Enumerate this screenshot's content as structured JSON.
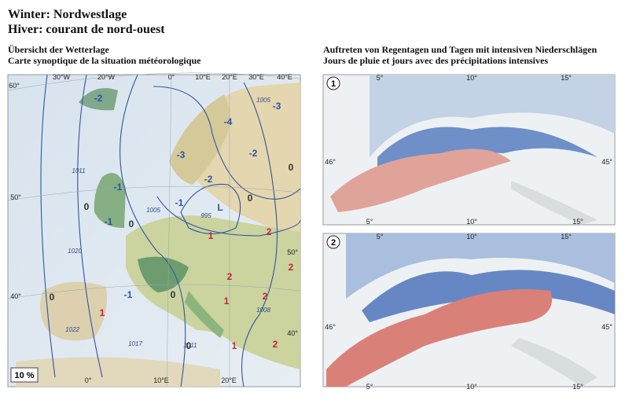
{
  "header": {
    "title_de": "Winter: Nordwestlage",
    "title_fr": "Hiver: courant de nord-ouest"
  },
  "synoptic_map": {
    "subtitle_de": "Übersicht der Wetterlage",
    "subtitle_fr": "Carte synoptique de la situation météorologique",
    "frequency": "10 %",
    "graticule_labels": [
      "30°W",
      "20°W",
      "0°",
      "10°E",
      "20°E",
      "30°E",
      "40°E",
      "60°",
      "50°",
      "40°",
      "50°",
      "40°",
      "0°",
      "10°E",
      "20°E"
    ],
    "isobar_labels": [
      "1005",
      "1011",
      "1005",
      "995",
      "1020",
      "1008",
      "1022",
      "1017",
      "1011"
    ],
    "anomaly_labels": [
      "-2",
      "-3",
      "-4",
      "-3",
      "-2",
      "-2",
      "0",
      "-1",
      "-1",
      "0",
      "L",
      "0",
      "-1",
      "0",
      "1",
      "2",
      "2",
      "2",
      "-1",
      "0",
      "1",
      "2",
      "1",
      "0",
      "1",
      "2",
      "0"
    ]
  },
  "precipitation_maps": {
    "subtitle_de": "Auftreten von Regentagen und Tagen mit intensiven Niederschlägen",
    "subtitle_fr": "Jours de pluie et jours avec des précipitations intensives",
    "maps": [
      {
        "number": "1",
        "graticule_labels": [
          "5°",
          "10°",
          "15°",
          "46°",
          "45°",
          "5°",
          "10°",
          "15°"
        ]
      },
      {
        "number": "2",
        "graticule_labels": [
          "5°",
          "10°",
          "15°",
          "46°",
          "45°",
          "5°",
          "10°",
          "15°"
        ]
      }
    ]
  }
}
